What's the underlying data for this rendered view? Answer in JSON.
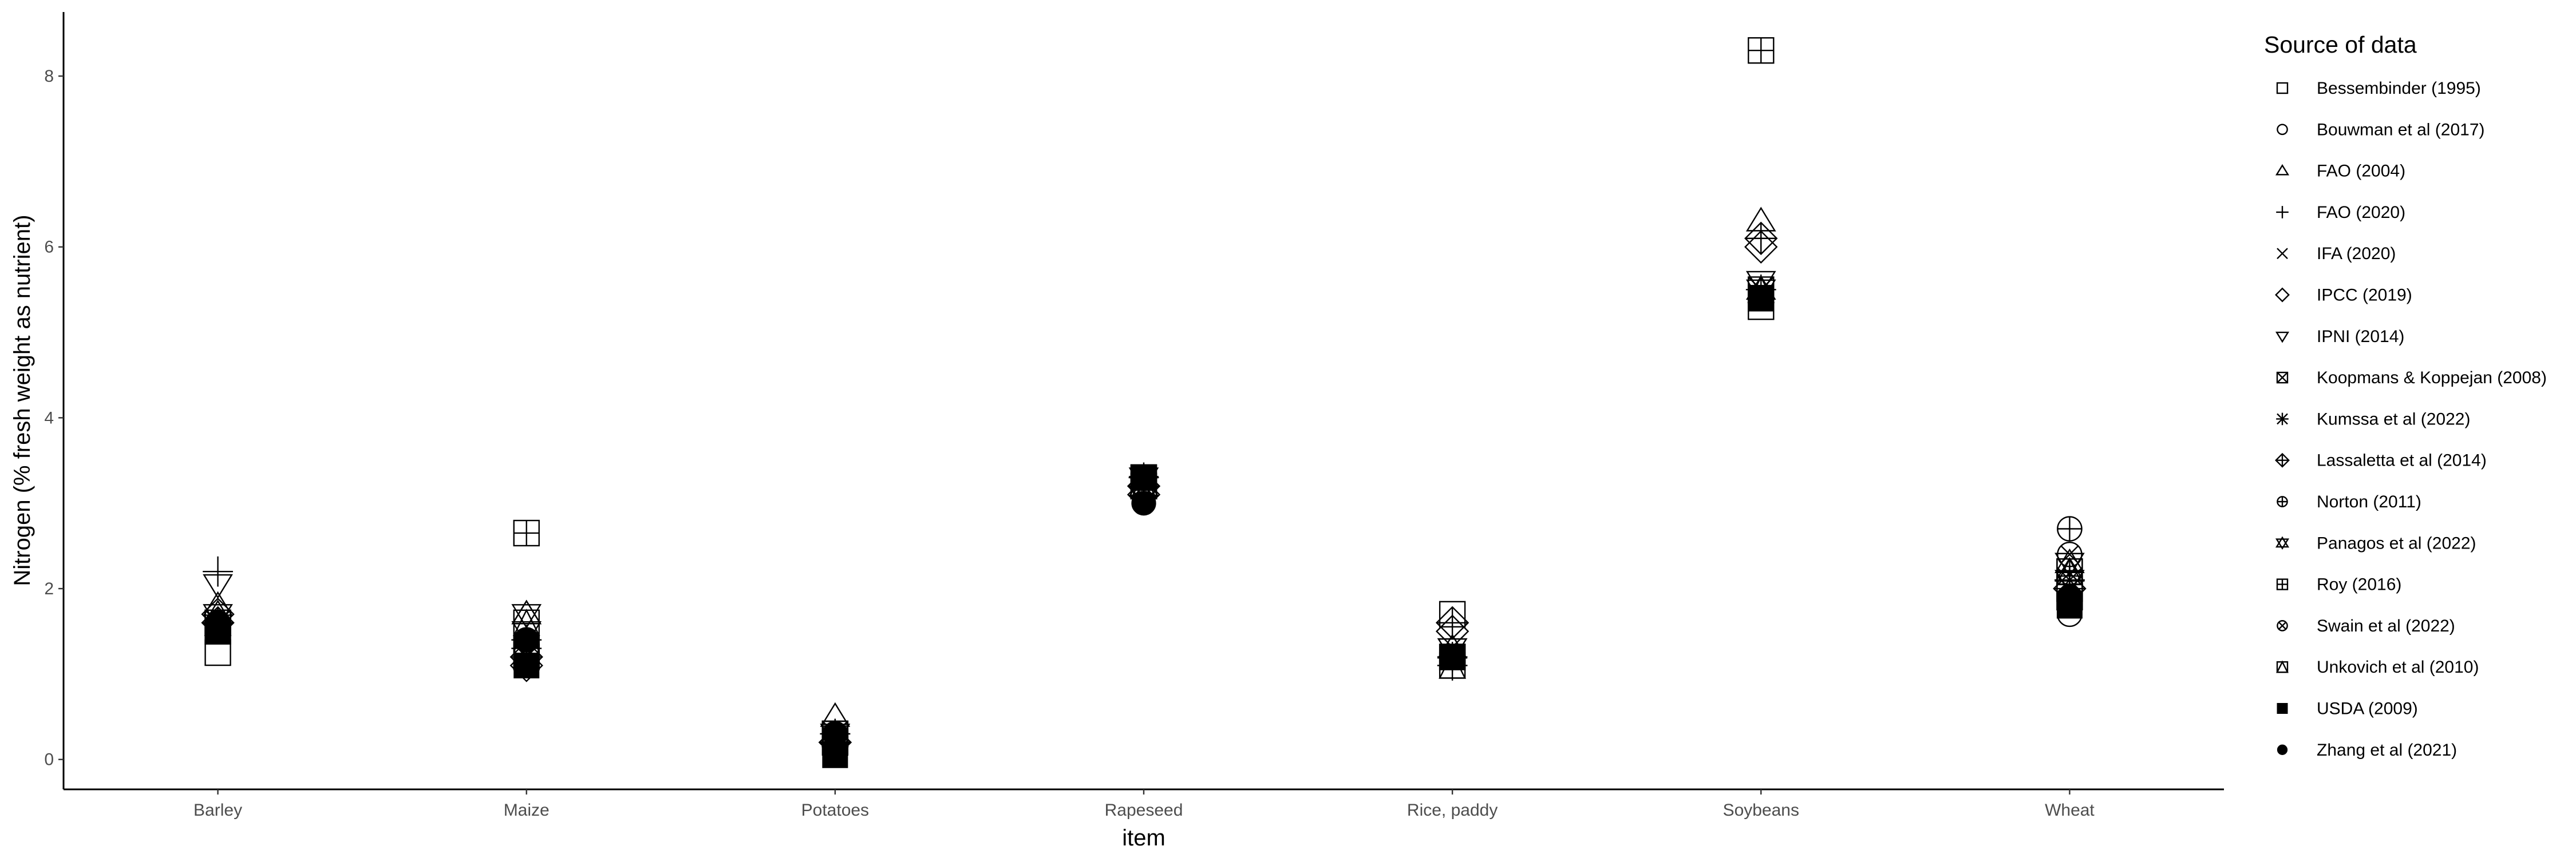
{
  "chart_data": {
    "type": "scatter",
    "xlabel": "item",
    "ylabel": "Nitrogen (% fresh weight as nutrient)",
    "categories": [
      "Barley",
      "Maize",
      "Potatoes",
      "Rapeseed",
      "Rice, paddy",
      "Soybeans",
      "Wheat"
    ],
    "y_ticks": [
      "0",
      "2",
      "4",
      "6",
      "8"
    ],
    "ylim": [
      -0.35,
      8.75
    ],
    "grid": false,
    "legend": {
      "title": "Source of data",
      "placement": "right"
    },
    "series": [
      {
        "name": "Bessembinder (1995)",
        "shape": "square-open",
        "values": [
          1.25,
          1.3,
          0.2,
          3.3,
          1.7,
          5.3,
          1.9
        ]
      },
      {
        "name": "Bouwman et al (2017)",
        "shape": "circle-open",
        "values": [
          1.6,
          1.25,
          0.25,
          3.2,
          1.2,
          5.4,
          1.7
        ]
      },
      {
        "name": "FAO (2004)",
        "shape": "triangle-open",
        "values": [
          1.8,
          1.7,
          0.5,
          3.3,
          1.3,
          6.3,
          2.2
        ]
      },
      {
        "name": "FAO (2020)",
        "shape": "plus",
        "values": [
          2.2,
          1.4,
          0.3,
          3.3,
          1.1,
          6.1,
          2.1
        ]
      },
      {
        "name": "IFA (2020)",
        "shape": "cross",
        "values": [
          1.6,
          1.3,
          0.3,
          3.2,
          1.2,
          5.5,
          2.0
        ]
      },
      {
        "name": "IPCC (2019)",
        "shape": "diamond-open",
        "values": [
          1.7,
          1.1,
          0.2,
          3.1,
          1.5,
          6.0,
          2.0
        ]
      },
      {
        "name": "IPNI (2014)",
        "shape": "triangle-down-open",
        "values": [
          2.05,
          1.5,
          0.3,
          3.3,
          1.3,
          5.6,
          2.1
        ]
      },
      {
        "name": "Koopmans & Koppejan (2008)",
        "shape": "square-cross",
        "values": [
          1.5,
          1.2,
          0.3,
          3.2,
          1.2,
          5.4,
          2.0
        ]
      },
      {
        "name": "Kumssa et al (2022)",
        "shape": "asterisk",
        "values": [
          1.6,
          1.3,
          0.3,
          3.2,
          1.2,
          5.5,
          2.1
        ]
      },
      {
        "name": "Lassaletta et al (2014)",
        "shape": "diamond-plus",
        "values": [
          1.6,
          1.2,
          0.2,
          3.2,
          1.6,
          6.1,
          2.0
        ]
      },
      {
        "name": "Norton (2011)",
        "shape": "circle-plus",
        "values": [
          1.6,
          1.4,
          0.3,
          3.2,
          1.2,
          5.4,
          2.7
        ]
      },
      {
        "name": "Panagos et al (2022)",
        "shape": "star-of-david",
        "values": [
          1.7,
          1.7,
          0.3,
          3.2,
          1.3,
          5.5,
          2.3
        ]
      },
      {
        "name": "Roy (2016)",
        "shape": "square-plus",
        "values": [
          1.6,
          2.65,
          0.3,
          3.3,
          1.2,
          8.3,
          2.2
        ]
      },
      {
        "name": "Swain et al (2022)",
        "shape": "circle-cross",
        "values": [
          1.6,
          1.3,
          0.3,
          3.2,
          1.2,
          5.4,
          2.4
        ]
      },
      {
        "name": "Unkovich et al (2010)",
        "shape": "square-triangle",
        "values": [
          1.6,
          1.6,
          0.3,
          3.2,
          1.1,
          5.5,
          2.2
        ]
      },
      {
        "name": "USDA (2009)",
        "shape": "square-filled",
        "values": [
          1.5,
          1.1,
          0.05,
          3.3,
          1.2,
          5.4,
          1.8
        ]
      },
      {
        "name": "Zhang et al (2021)",
        "shape": "circle-filled",
        "values": [
          1.6,
          1.4,
          0.3,
          3.0,
          1.2,
          5.4,
          1.9
        ]
      }
    ]
  }
}
